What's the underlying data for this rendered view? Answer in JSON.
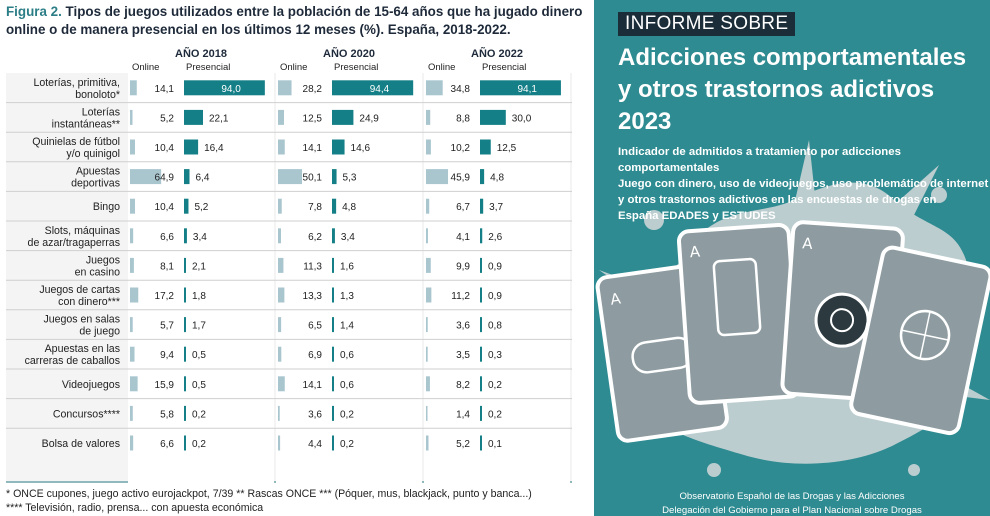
{
  "caption": {
    "figure_label": "Figura 2.",
    "text": "Tipos de juegos utilizados entre la población de 15-64 años que ha jugado dinero online o de manera presencial en los últimos 12 meses (%). España, 2018-2022."
  },
  "chart_data": {
    "type": "bar",
    "orientation": "horizontal",
    "title": "Tipos de juegos utilizados entre la población de 15-64 años que ha jugado dinero online o de manera presencial en los últimos 12 meses (%). España, 2018-2022.",
    "panels": [
      "AÑO 2018",
      "AÑO 2020",
      "AÑO 2022"
    ],
    "series_labels": [
      "Online",
      "Presencial"
    ],
    "colors": {
      "online": "#a9c6cf",
      "presencial": "#147f87",
      "header": "#1e2a3a"
    },
    "categories": [
      [
        "Loterías, primitiva,",
        "bonoloto*"
      ],
      [
        "Loterías",
        "instantáneas**"
      ],
      [
        "Quinielas de fútbol",
        "y/o quinigol"
      ],
      [
        "Apuestas",
        "deportivas"
      ],
      [
        "Bingo"
      ],
      [
        "Slots, máquinas",
        "de azar/tragaperras"
      ],
      [
        "Juegos",
        "en casino"
      ],
      [
        "Juegos de cartas",
        "con dinero***"
      ],
      [
        "Juegos en salas",
        "de juego"
      ],
      [
        "Apuestas en las",
        "carreras de caballos"
      ],
      [
        "Videojuegos"
      ],
      [
        "Concursos****"
      ],
      [
        "Bolsa de valores"
      ]
    ],
    "series": [
      {
        "year": "AÑO 2018",
        "online": [
          14.1,
          5.2,
          10.4,
          64.9,
          10.4,
          6.6,
          8.1,
          17.2,
          5.7,
          9.4,
          15.9,
          5.8,
          6.6
        ],
        "presencial": [
          94.0,
          22.1,
          16.4,
          6.4,
          5.2,
          3.4,
          2.1,
          1.8,
          1.7,
          0.5,
          0.5,
          0.2,
          0.2
        ]
      },
      {
        "year": "AÑO 2020",
        "online": [
          28.2,
          12.5,
          14.1,
          50.1,
          7.8,
          6.2,
          11.3,
          13.3,
          6.5,
          6.9,
          14.1,
          3.6,
          4.4
        ],
        "presencial": [
          94.4,
          24.9,
          14.6,
          5.3,
          4.8,
          3.4,
          1.6,
          1.3,
          1.4,
          0.6,
          0.6,
          0.2,
          0.2
        ]
      },
      {
        "year": "AÑO 2022",
        "online": [
          34.8,
          8.8,
          10.2,
          45.9,
          6.7,
          4.1,
          9.9,
          11.2,
          3.6,
          3.5,
          8.2,
          1.4,
          5.2
        ],
        "presencial": [
          94.1,
          30.0,
          12.5,
          4.8,
          3.7,
          2.6,
          0.9,
          0.9,
          0.8,
          0.3,
          0.2,
          0.2,
          0.1
        ]
      }
    ],
    "xlim": [
      0,
      100
    ]
  },
  "footnotes": [
    "* ONCE cupones, juego activo eurojackpot, 7/39   ** Rascas ONCE   *** (Póquer, mus,  blackjack, punto y banca...)",
    "**** Televisión, radio, prensa... con apuesta económica"
  ],
  "cover": {
    "tag": "INFORME SOBRE",
    "title_lines": [
      "Adicciones comportamentales",
      "y otros trastornos adictivos",
      "2023"
    ],
    "description_lines": [
      "Indicador de admitidos a tratamiento por adicciones comportamentales",
      "Juego con dinero, uso de videojuegos, uso problemático de internet",
      "y otros trastornos adictivos en las encuestas de drogas en",
      "España EDADES y ESTUDES"
    ],
    "footer_lines": [
      "Observatorio Español de las Drogas y las Adicciones",
      "Delegación del Gobierno para el Plan Nacional sobre Drogas"
    ],
    "colors": {
      "background": "#2e8b91",
      "splash": "#c9d3d5",
      "card": "#8e9ca1"
    }
  }
}
